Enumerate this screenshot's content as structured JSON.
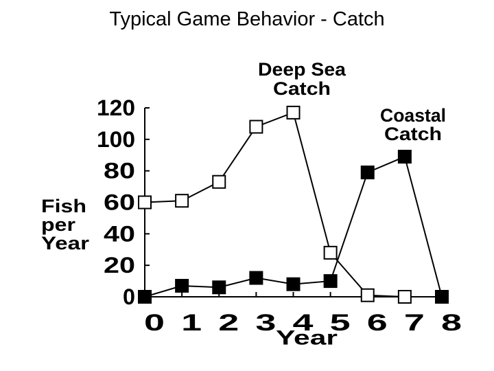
{
  "title": "Typical Game Behavior - Catch",
  "chart_data": {
    "type": "line",
    "title": "Typical Game Behavior - Catch",
    "xlabel": "Year",
    "ylabel": [
      "Fish",
      "per",
      "Year"
    ],
    "x": [
      0,
      1,
      2,
      3,
      4,
      5,
      6,
      7,
      8
    ],
    "x_tick_labels": [
      "0",
      "1",
      "2",
      "3",
      "4",
      "5",
      "6",
      "7",
      "8"
    ],
    "y_tick_labels": [
      "0",
      "20",
      "40",
      "60",
      "80",
      "100",
      "120"
    ],
    "xlim": [
      0,
      8
    ],
    "ylim": [
      0,
      120
    ],
    "grid": false,
    "series": [
      {
        "name": "Deep Sea Catch",
        "label_lines": [
          "Deep Sea",
          "Catch"
        ],
        "marker": "open-square",
        "color": "#000000",
        "values": [
          60,
          61,
          73,
          108,
          117,
          28,
          1,
          0,
          0
        ]
      },
      {
        "name": "Coastal Catch",
        "label_lines": [
          "Coastal",
          "Catch"
        ],
        "marker": "filled-square",
        "color": "#000000",
        "values": [
          0,
          7,
          6,
          12,
          8,
          10,
          79,
          89,
          0
        ]
      }
    ]
  }
}
